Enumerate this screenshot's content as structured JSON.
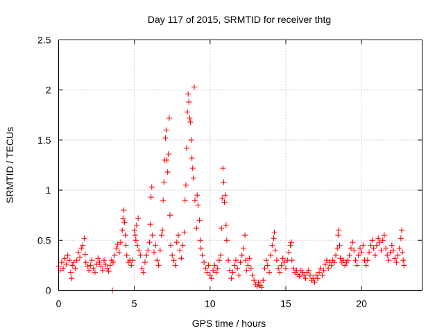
{
  "chart_data": {
    "type": "scatter",
    "title": "Day 117 of 2015, SRMTID for receiver thtg",
    "xlabel": "GPS time / hours",
    "ylabel": "SRMTID / TECUs",
    "xlim": [
      0,
      24
    ],
    "ylim": [
      0,
      2.5
    ],
    "x_ticks": [
      0,
      5,
      10,
      15,
      20
    ],
    "x_tick_labels": [
      "0",
      "5",
      "10",
      "15",
      "20"
    ],
    "y_ticks": [
      0,
      0.5,
      1,
      1.5,
      2,
      2.5
    ],
    "y_tick_labels": [
      "0",
      "0.5",
      "1",
      "1.5",
      "2",
      "2.5"
    ],
    "grid": true,
    "marker": "plus",
    "color": "#ff0000",
    "series": [
      {
        "name": "SRMTID",
        "points": [
          [
            0.0,
            0.24
          ],
          [
            0.1,
            0.2
          ],
          [
            0.2,
            0.28
          ],
          [
            0.3,
            0.22
          ],
          [
            0.4,
            0.32
          ],
          [
            0.5,
            0.26
          ],
          [
            0.6,
            0.35
          ],
          [
            0.7,
            0.3
          ],
          [
            0.8,
            0.18
          ],
          [
            0.85,
            0.12
          ],
          [
            0.9,
            0.25
          ],
          [
            1.0,
            0.28
          ],
          [
            1.1,
            0.22
          ],
          [
            1.2,
            0.3
          ],
          [
            1.3,
            0.38
          ],
          [
            1.4,
            0.33
          ],
          [
            1.5,
            0.42
          ],
          [
            1.6,
            0.45
          ],
          [
            1.7,
            0.52
          ],
          [
            1.75,
            0.36
          ],
          [
            1.8,
            0.28
          ],
          [
            1.9,
            0.24
          ],
          [
            2.0,
            0.2
          ],
          [
            2.1,
            0.25
          ],
          [
            2.2,
            0.3
          ],
          [
            2.3,
            0.22
          ],
          [
            2.4,
            0.18
          ],
          [
            2.5,
            0.26
          ],
          [
            2.6,
            0.32
          ],
          [
            2.7,
            0.28
          ],
          [
            2.8,
            0.24
          ],
          [
            2.9,
            0.2
          ],
          [
            3.0,
            0.3
          ],
          [
            3.1,
            0.26
          ],
          [
            3.2,
            0.22
          ],
          [
            3.3,
            0.19
          ],
          [
            3.4,
            0.25
          ],
          [
            3.5,
            0.3
          ],
          [
            3.55,
            0.0
          ],
          [
            3.6,
            0.28
          ],
          [
            3.7,
            0.35
          ],
          [
            3.8,
            0.42
          ],
          [
            3.9,
            0.46
          ],
          [
            4.0,
            0.38
          ],
          [
            4.1,
            0.48
          ],
          [
            4.2,
            0.6
          ],
          [
            4.25,
            0.72
          ],
          [
            4.3,
            0.8
          ],
          [
            4.35,
            0.68
          ],
          [
            4.4,
            0.55
          ],
          [
            4.45,
            0.45
          ],
          [
            4.5,
            0.35
          ],
          [
            4.6,
            0.28
          ],
          [
            4.7,
            0.3
          ],
          [
            4.8,
            0.25
          ],
          [
            4.9,
            0.3
          ],
          [
            5.0,
            0.6
          ],
          [
            5.05,
            0.55
          ],
          [
            5.1,
            0.5
          ],
          [
            5.15,
            0.65
          ],
          [
            5.2,
            0.45
          ],
          [
            5.25,
            0.72
          ],
          [
            5.3,
            0.4
          ],
          [
            5.4,
            0.35
          ],
          [
            5.5,
            0.22
          ],
          [
            5.6,
            0.18
          ],
          [
            5.7,
            0.28
          ],
          [
            5.8,
            0.35
          ],
          [
            5.9,
            0.4
          ],
          [
            6.0,
            0.48
          ],
          [
            6.05,
            0.66
          ],
          [
            6.1,
            0.93
          ],
          [
            6.15,
            1.03
          ],
          [
            6.2,
            0.55
          ],
          [
            6.3,
            0.38
          ],
          [
            6.4,
            0.45
          ],
          [
            6.5,
            0.3
          ],
          [
            6.6,
            0.25
          ],
          [
            6.7,
            0.4
          ],
          [
            6.8,
            0.55
          ],
          [
            6.85,
            0.6
          ],
          [
            6.9,
            0.9
          ],
          [
            6.95,
            1.08
          ],
          [
            7.0,
            1.3
          ],
          [
            7.05,
            1.52
          ],
          [
            7.1,
            1.6
          ],
          [
            7.15,
            1.3
          ],
          [
            7.2,
            1.18
          ],
          [
            7.25,
            1.36
          ],
          [
            7.3,
            1.72
          ],
          [
            7.35,
            0.75
          ],
          [
            7.4,
            0.45
          ],
          [
            7.5,
            0.35
          ],
          [
            7.6,
            0.3
          ],
          [
            7.7,
            0.25
          ],
          [
            7.8,
            0.48
          ],
          [
            7.9,
            0.55
          ],
          [
            8.0,
            0.4
          ],
          [
            8.1,
            0.32
          ],
          [
            8.2,
            0.45
          ],
          [
            8.3,
            0.58
          ],
          [
            8.35,
            0.9
          ],
          [
            8.4,
            1.05
          ],
          [
            8.45,
            1.42
          ],
          [
            8.5,
            1.78
          ],
          [
            8.55,
            1.96
          ],
          [
            8.6,
            1.88
          ],
          [
            8.65,
            1.72
          ],
          [
            8.7,
            1.68
          ],
          [
            8.75,
            1.5
          ],
          [
            8.8,
            1.32
          ],
          [
            8.85,
            1.22
          ],
          [
            8.9,
            1.12
          ],
          [
            8.95,
            2.03
          ],
          [
            9.0,
            0.9
          ],
          [
            9.1,
            0.62
          ],
          [
            9.15,
            0.95
          ],
          [
            9.2,
            0.85
          ],
          [
            9.3,
            0.7
          ],
          [
            9.35,
            0.5
          ],
          [
            9.4,
            0.42
          ],
          [
            9.5,
            0.35
          ],
          [
            9.6,
            0.28
          ],
          [
            9.7,
            0.22
          ],
          [
            9.8,
            0.18
          ],
          [
            9.9,
            0.25
          ],
          [
            10.0,
            0.15
          ],
          [
            10.1,
            0.12
          ],
          [
            10.2,
            0.2
          ],
          [
            10.3,
            0.25
          ],
          [
            10.4,
            0.18
          ],
          [
            10.5,
            0.22
          ],
          [
            10.6,
            0.3
          ],
          [
            10.7,
            0.35
          ],
          [
            10.75,
            0.62
          ],
          [
            10.8,
            0.92
          ],
          [
            10.85,
            1.22
          ],
          [
            10.9,
            1.08
          ],
          [
            10.95,
            0.88
          ],
          [
            11.0,
            0.95
          ],
          [
            11.05,
            0.65
          ],
          [
            11.1,
            0.5
          ],
          [
            11.2,
            0.3
          ],
          [
            11.3,
            0.2
          ],
          [
            11.4,
            0.12
          ],
          [
            11.5,
            0.18
          ],
          [
            11.6,
            0.25
          ],
          [
            11.7,
            0.3
          ],
          [
            11.8,
            0.22
          ],
          [
            11.9,
            0.15
          ],
          [
            12.0,
            0.28
          ],
          [
            12.1,
            0.35
          ],
          [
            12.2,
            0.42
          ],
          [
            12.3,
            0.55
          ],
          [
            12.35,
            0.3
          ],
          [
            12.4,
            0.2
          ],
          [
            12.5,
            0.25
          ],
          [
            12.6,
            0.32
          ],
          [
            12.7,
            0.22
          ],
          [
            12.8,
            0.15
          ],
          [
            12.9,
            0.1
          ],
          [
            13.0,
            0.06
          ],
          [
            13.1,
            0.04
          ],
          [
            13.2,
            0.08
          ],
          [
            13.3,
            0.05
          ],
          [
            13.4,
            0.03
          ],
          [
            13.5,
            0.1
          ],
          [
            13.6,
            0.22
          ],
          [
            13.7,
            0.3
          ],
          [
            13.8,
            0.25
          ],
          [
            13.9,
            0.18
          ],
          [
            14.0,
            0.35
          ],
          [
            14.1,
            0.45
          ],
          [
            14.2,
            0.52
          ],
          [
            14.25,
            0.58
          ],
          [
            14.3,
            0.4
          ],
          [
            14.4,
            0.3
          ],
          [
            14.5,
            0.22
          ],
          [
            14.6,
            0.18
          ],
          [
            14.7,
            0.25
          ],
          [
            14.8,
            0.32
          ],
          [
            14.9,
            0.28
          ],
          [
            15.0,
            0.22
          ],
          [
            15.1,
            0.3
          ],
          [
            15.2,
            0.38
          ],
          [
            15.3,
            0.45
          ],
          [
            15.35,
            0.48
          ],
          [
            15.4,
            0.3
          ],
          [
            15.5,
            0.22
          ],
          [
            15.6,
            0.18
          ],
          [
            15.7,
            0.2
          ],
          [
            15.8,
            0.16
          ],
          [
            15.9,
            0.14
          ],
          [
            16.0,
            0.2
          ],
          [
            16.1,
            0.18
          ],
          [
            16.2,
            0.15
          ],
          [
            16.3,
            0.12
          ],
          [
            16.4,
            0.18
          ],
          [
            16.5,
            0.2
          ],
          [
            16.6,
            0.15
          ],
          [
            16.7,
            0.1
          ],
          [
            16.8,
            0.12
          ],
          [
            16.9,
            0.08
          ],
          [
            17.0,
            0.15
          ],
          [
            17.1,
            0.12
          ],
          [
            17.2,
            0.18
          ],
          [
            17.3,
            0.22
          ],
          [
            17.4,
            0.15
          ],
          [
            17.5,
            0.2
          ],
          [
            17.6,
            0.26
          ],
          [
            17.7,
            0.3
          ],
          [
            17.8,
            0.22
          ],
          [
            17.9,
            0.28
          ],
          [
            18.0,
            0.25
          ],
          [
            18.1,
            0.3
          ],
          [
            18.2,
            0.28
          ],
          [
            18.3,
            0.35
          ],
          [
            18.4,
            0.42
          ],
          [
            18.45,
            0.55
          ],
          [
            18.5,
            0.6
          ],
          [
            18.55,
            0.45
          ],
          [
            18.6,
            0.32
          ],
          [
            18.7,
            0.28
          ],
          [
            18.8,
            0.3
          ],
          [
            18.9,
            0.25
          ],
          [
            19.0,
            0.28
          ],
          [
            19.1,
            0.3
          ],
          [
            19.2,
            0.35
          ],
          [
            19.3,
            0.42
          ],
          [
            19.4,
            0.48
          ],
          [
            19.5,
            0.4
          ],
          [
            19.6,
            0.3
          ],
          [
            19.7,
            0.25
          ],
          [
            19.8,
            0.35
          ],
          [
            19.9,
            0.42
          ],
          [
            20.0,
            0.38
          ],
          [
            20.1,
            0.45
          ],
          [
            20.2,
            0.3
          ],
          [
            20.3,
            0.25
          ],
          [
            20.4,
            0.3
          ],
          [
            20.5,
            0.38
          ],
          [
            20.6,
            0.45
          ],
          [
            20.7,
            0.5
          ],
          [
            20.8,
            0.42
          ],
          [
            20.9,
            0.35
          ],
          [
            21.0,
            0.45
          ],
          [
            21.1,
            0.52
          ],
          [
            21.2,
            0.48
          ],
          [
            21.3,
            0.4
          ],
          [
            21.4,
            0.5
          ],
          [
            21.5,
            0.55
          ],
          [
            21.6,
            0.42
          ],
          [
            21.7,
            0.35
          ],
          [
            21.8,
            0.3
          ],
          [
            21.9,
            0.38
          ],
          [
            22.0,
            0.45
          ],
          [
            22.1,
            0.4
          ],
          [
            22.2,
            0.32
          ],
          [
            22.3,
            0.28
          ],
          [
            22.4,
            0.35
          ],
          [
            22.5,
            0.42
          ],
          [
            22.6,
            0.52
          ],
          [
            22.65,
            0.6
          ],
          [
            22.7,
            0.38
          ],
          [
            22.75,
            0.3
          ],
          [
            22.8,
            0.25
          ]
        ]
      }
    ]
  }
}
